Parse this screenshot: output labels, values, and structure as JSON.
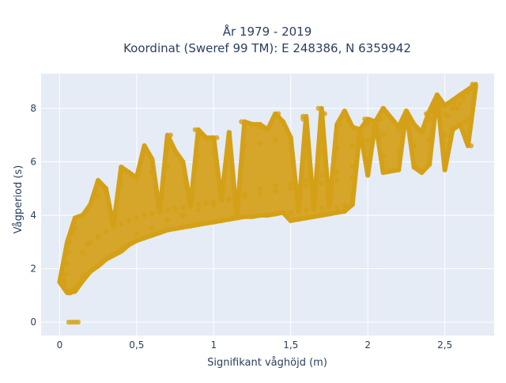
{
  "chart_data": {
    "type": "scatter",
    "title": "År 1979 - 2019",
    "subtitle": "Koordinat (Sweref 99 TM): E 248386, N 6359942",
    "xlabel": "Signifikant våghöjd (m)",
    "ylabel": "Vågperiod (s)",
    "xlim": [
      -0.12,
      2.82
    ],
    "ylim": [
      -0.5,
      9.3
    ],
    "x_ticks": [
      0,
      0.5,
      1,
      1.5,
      2,
      2.5
    ],
    "x_tick_labels": [
      "0",
      "0,5",
      "1",
      "1,5",
      "2",
      "2,5"
    ],
    "y_ticks": [
      0,
      2,
      4,
      6,
      8
    ],
    "y_tick_labels": [
      "0",
      "2",
      "4",
      "6",
      "8"
    ],
    "grid": true,
    "legend": "none",
    "colors": {
      "marker": "#D4A017",
      "plot_bg": "#E5ECF6",
      "grid": "#ffffff",
      "text": "#2a3f5f"
    },
    "series": [
      {
        "values_note": "",
        "x": [
          0.03,
          0.04,
          0.05,
          0.06,
          0.07,
          0.08,
          0.09,
          0.1,
          0.02,
          0.03,
          0.05,
          0.06,
          0.07,
          0.08,
          0.09,
          0.1,
          0.12,
          0.14,
          0.15,
          0.17,
          0.2,
          0.22,
          0.25,
          0.27,
          0.3,
          0.33,
          0.35,
          0.38,
          0.4,
          0.45,
          0.5,
          0.55,
          0.6,
          0.65,
          0.7,
          0.75,
          0.8,
          0.85,
          0.9,
          0.95,
          1.0,
          1.05,
          1.1,
          1.15,
          1.2,
          1.25,
          1.3,
          1.35,
          1.4,
          1.45,
          1.5,
          1.55,
          1.6,
          1.65,
          1.7,
          1.75,
          1.8,
          1.85,
          1.9,
          0.1,
          0.15,
          0.2,
          0.25,
          0.3,
          0.4,
          0.5,
          0.6,
          0.7,
          0.8,
          0.9,
          1.0,
          1.1,
          1.2,
          1.3,
          1.4,
          1.5,
          1.6,
          1.7,
          1.8,
          1.9,
          2.0,
          2.05,
          0.5,
          0.6,
          0.7,
          0.8,
          0.9,
          1.0,
          1.1,
          1.2,
          1.3,
          1.4,
          1.5,
          1.6,
          1.7,
          1.8,
          1.9,
          2.0,
          2.1,
          2.2,
          2.3,
          2.4,
          2.5,
          2.55,
          2.6,
          2.65,
          1.5,
          1.55,
          1.6,
          1.65,
          1.7,
          1.75,
          1.8,
          1.85,
          0.15,
          0.18,
          0.2,
          0.25,
          0.3,
          0.35,
          0.4,
          0.45,
          0.5,
          0.55,
          0.6,
          0.65,
          0.7,
          0.75,
          0.8,
          0.85,
          0.9,
          0.95,
          1.0,
          1.05,
          1.1,
          1.2,
          1.3,
          1.4,
          1.5,
          1.6,
          1.7,
          1.8,
          1.9,
          2.0,
          2.1,
          2.2,
          2.3,
          2.4,
          2.5,
          1.6,
          1.7,
          1.8,
          1.9,
          2.0,
          2.1,
          2.2,
          2.3,
          2.4,
          2.5,
          2.55,
          2.6,
          2.62,
          2.65,
          2.68,
          2.56,
          2.6,
          2.66,
          2.68,
          2.45,
          2.55,
          2.42,
          2.48,
          2.52,
          2.58,
          2.63,
          2.67,
          0.3,
          0.45,
          0.6,
          0.75,
          0.95,
          1.1,
          1.25,
          1.35,
          1.45,
          1.58,
          1.72,
          1.85,
          1.98,
          2.1,
          2.25,
          2.38,
          0.55,
          0.72,
          0.88,
          1.02,
          1.18,
          1.3,
          1.42,
          1.58,
          1.68,
          1.82,
          1.95,
          2.08,
          2.22,
          2.35,
          0.06,
          0.08,
          0.1,
          0.12,
          0.25,
          0.4,
          0.7,
          1.0,
          1.3,
          2.0,
          2.35,
          2.5
        ],
        "y": [
          1.6,
          1.8,
          2.2,
          2.6,
          3.0,
          3.4,
          3.7,
          3.9,
          1.5,
          1.4,
          1.2,
          1.1,
          1.1,
          1.15,
          1.2,
          1.3,
          1.4,
          1.55,
          1.7,
          1.8,
          1.9,
          2.0,
          2.1,
          2.2,
          2.35,
          2.5,
          2.55,
          2.65,
          2.75,
          2.9,
          3.05,
          3.15,
          3.25,
          3.35,
          3.45,
          3.5,
          3.55,
          3.6,
          3.65,
          3.7,
          3.75,
          3.8,
          3.85,
          3.9,
          3.95,
          3.95,
          4.0,
          4.0,
          4.05,
          4.1,
          4.1,
          4.15,
          4.2,
          4.2,
          4.25,
          4.3,
          4.3,
          4.35,
          4.4,
          3.5,
          4.0,
          4.4,
          4.7,
          4.9,
          5.2,
          5.4,
          5.6,
          5.8,
          6.0,
          6.2,
          6.3,
          6.5,
          6.6,
          6.7,
          6.8,
          6.9,
          7.0,
          7.1,
          7.2,
          7.3,
          7.4,
          7.5,
          3.3,
          3.5,
          3.8,
          4.0,
          4.2,
          4.4,
          4.6,
          4.8,
          5.0,
          5.1,
          5.2,
          5.3,
          5.5,
          5.6,
          5.8,
          6.0,
          6.2,
          6.4,
          6.6,
          6.8,
          7.0,
          7.2,
          7.4,
          7.6,
          3.8,
          3.85,
          3.9,
          3.95,
          4.0,
          4.05,
          4.1,
          4.15,
          2.6,
          2.9,
          3.0,
          3.2,
          3.4,
          3.6,
          3.7,
          3.8,
          3.9,
          4.0,
          4.05,
          4.1,
          4.2,
          4.25,
          4.3,
          4.35,
          4.4,
          4.45,
          4.5,
          4.55,
          4.6,
          4.7,
          4.8,
          4.9,
          5.0,
          5.1,
          5.2,
          5.3,
          5.4,
          5.5,
          5.6,
          5.7,
          5.8,
          5.9,
          6.0,
          6.2,
          6.4,
          6.5,
          6.6,
          6.8,
          7.0,
          7.2,
          7.4,
          7.6,
          7.8,
          8.0,
          8.2,
          8.4,
          8.6,
          8.8,
          8.2,
          8.5,
          8.7,
          8.9,
          8.5,
          8.3,
          7.9,
          8.1,
          7.7,
          8.0,
          7.5,
          6.6,
          5.0,
          5.6,
          6.1,
          6.4,
          6.9,
          7.1,
          7.4,
          7.2,
          7.5,
          7.7,
          7.8,
          7.9,
          7.6,
          8.0,
          7.9,
          7.8,
          6.6,
          7.0,
          7.2,
          6.9,
          7.5,
          7.3,
          7.8,
          7.6,
          8.0,
          7.4,
          7.2,
          7.6,
          7.3,
          7.1,
          0.0,
          0.0,
          0.0,
          0.0,
          5.3,
          5.8,
          6.5,
          6.9,
          7.4,
          5.5,
          5.6,
          5.7
        ]
      }
    ]
  }
}
